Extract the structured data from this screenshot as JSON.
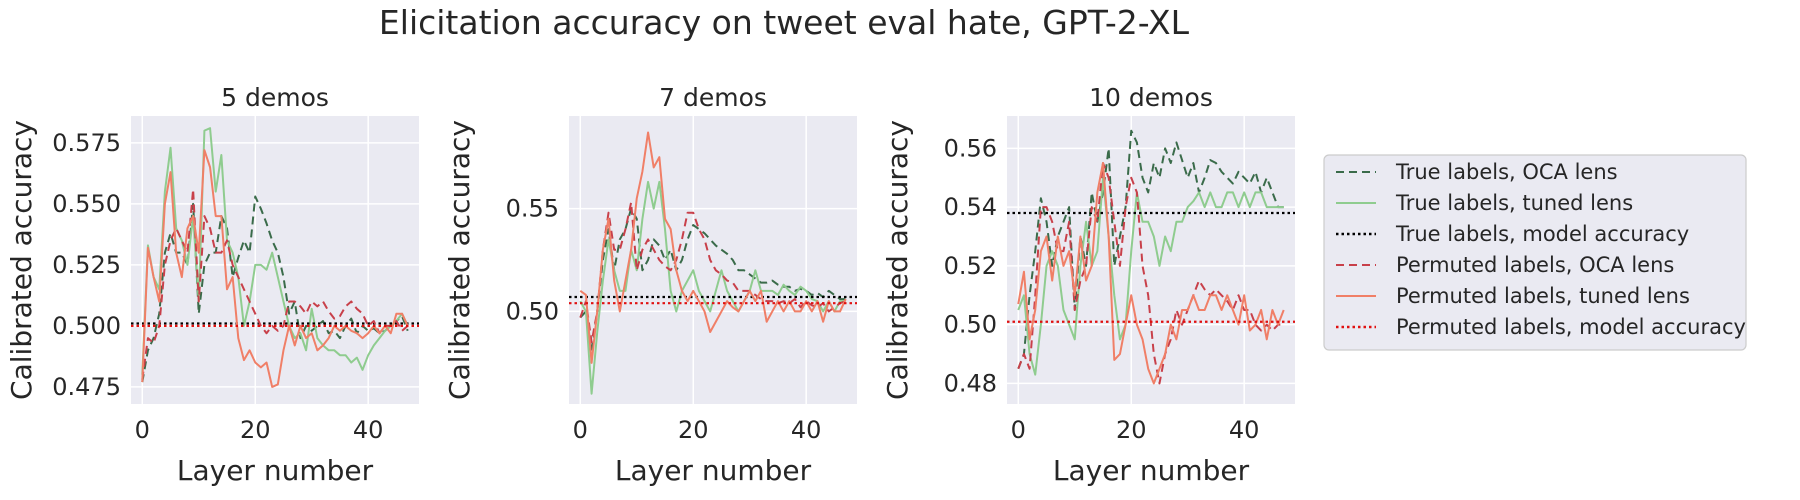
{
  "figure": {
    "title": "Elicitation accuracy on tweet eval hate, GPT-2-XL"
  },
  "legend": {
    "placement": "right, outside panels",
    "entries": [
      {
        "label": "True labels, OCA lens",
        "color": "#3a6b4a",
        "style": "dashed"
      },
      {
        "label": "True labels, tuned lens",
        "color": "#8fcc8f",
        "style": "solid"
      },
      {
        "label": "True labels, model accuracy",
        "color": "#000000",
        "style": "dotted"
      },
      {
        "label": "Permuted labels, OCA lens",
        "color": "#c8404a",
        "style": "dashed"
      },
      {
        "label": "Permuted labels, tuned lens",
        "color": "#f07f67",
        "style": "solid"
      },
      {
        "label": "Permuted labels, model accuracy",
        "color": "#e01010",
        "style": "dotted"
      }
    ]
  },
  "chart_data": [
    {
      "type": "line",
      "title": "5 demos",
      "xlabel": "Layer number",
      "ylabel": "Calibrated accuracy",
      "xlim": [
        -2,
        49
      ],
      "ylim": [
        0.468,
        0.586
      ],
      "xticks": [
        0,
        20,
        40
      ],
      "yticks": [
        0.475,
        0.5,
        0.525,
        0.55,
        0.575
      ],
      "ytick_labels": [
        "0.475",
        "0.500",
        "0.525",
        "0.550",
        "0.575"
      ],
      "grid": true,
      "series": [
        {
          "name": "True labels, OCA lens",
          "style": "dashed",
          "values": [
            0.477,
            0.49,
            0.495,
            0.505,
            0.53,
            0.538,
            0.53,
            0.53,
            0.525,
            0.55,
            0.505,
            0.525,
            0.53,
            0.53,
            0.545,
            0.54,
            0.52,
            0.528,
            0.535,
            0.53,
            0.553,
            0.548,
            0.542,
            0.535,
            0.53,
            0.52,
            0.505,
            0.51,
            0.495,
            0.5,
            0.498,
            0.5,
            0.502,
            0.497,
            0.498,
            0.495,
            0.5,
            0.503,
            0.497,
            0.5,
            0.498,
            0.499,
            0.497,
            0.498,
            0.5,
            0.502,
            0.504,
            0.498
          ]
        },
        {
          "name": "True labels, tuned lens",
          "style": "solid",
          "values": [
            0.48,
            0.533,
            0.52,
            0.515,
            0.555,
            0.573,
            0.54,
            0.535,
            0.525,
            0.545,
            0.51,
            0.58,
            0.581,
            0.555,
            0.57,
            0.535,
            0.53,
            0.52,
            0.5,
            0.51,
            0.525,
            0.525,
            0.523,
            0.53,
            0.52,
            0.51,
            0.5,
            0.495,
            0.497,
            0.49,
            0.507,
            0.495,
            0.492,
            0.49,
            0.49,
            0.488,
            0.488,
            0.485,
            0.487,
            0.482,
            0.488,
            0.492,
            0.495,
            0.498,
            0.5,
            0.502,
            0.505,
            0.5
          ]
        },
        {
          "name": "True labels, model accuracy",
          "style": "dotted",
          "constant": 0.501
        },
        {
          "name": "Permuted labels, OCA lens",
          "style": "dashed",
          "values": [
            0.478,
            0.495,
            0.493,
            0.5,
            0.525,
            0.535,
            0.54,
            0.535,
            0.53,
            0.556,
            0.51,
            0.545,
            0.54,
            0.53,
            0.53,
            0.535,
            0.525,
            0.52,
            0.515,
            0.51,
            0.505,
            0.5,
            0.497,
            0.5,
            0.498,
            0.5,
            0.51,
            0.51,
            0.508,
            0.505,
            0.51,
            0.508,
            0.51,
            0.506,
            0.503,
            0.504,
            0.508,
            0.51,
            0.507,
            0.505,
            0.5,
            0.502,
            0.497,
            0.5,
            0.5,
            0.502,
            0.498,
            0.5
          ]
        },
        {
          "name": "Permuted labels, tuned lens",
          "style": "solid",
          "values": [
            0.477,
            0.532,
            0.52,
            0.51,
            0.55,
            0.563,
            0.53,
            0.52,
            0.54,
            0.545,
            0.53,
            0.572,
            0.565,
            0.545,
            0.545,
            0.515,
            0.52,
            0.495,
            0.486,
            0.49,
            0.485,
            0.483,
            0.485,
            0.475,
            0.476,
            0.49,
            0.5,
            0.492,
            0.5,
            0.495,
            0.497,
            0.49,
            0.492,
            0.495,
            0.5,
            0.498,
            0.5,
            0.498,
            0.497,
            0.495,
            0.497,
            0.5,
            0.497,
            0.5,
            0.497,
            0.505,
            0.505,
            0.5
          ]
        },
        {
          "name": "Permuted labels, model accuracy",
          "style": "dotted",
          "constant": 0.5
        }
      ]
    },
    {
      "type": "line",
      "title": "7 demos",
      "xlabel": "Layer number",
      "ylabel": "Calibrated accuracy",
      "xlim": [
        -2,
        49
      ],
      "ylim": [
        0.455,
        0.595
      ],
      "xticks": [
        0,
        20,
        40
      ],
      "yticks": [
        0.5,
        0.55
      ],
      "ytick_labels": [
        "0.50",
        "0.55"
      ],
      "grid": true,
      "series": [
        {
          "name": "True labels, OCA lens",
          "style": "dashed",
          "values": [
            0.497,
            0.5,
            0.48,
            0.5,
            0.525,
            0.54,
            0.52,
            0.535,
            0.54,
            0.55,
            0.545,
            0.52,
            0.525,
            0.535,
            0.532,
            0.525,
            0.53,
            0.52,
            0.525,
            0.535,
            0.542,
            0.54,
            0.538,
            0.535,
            0.532,
            0.53,
            0.528,
            0.525,
            0.52,
            0.52,
            0.518,
            0.516,
            0.514,
            0.514,
            0.515,
            0.513,
            0.512,
            0.512,
            0.51,
            0.511,
            0.51,
            0.508,
            0.509,
            0.507,
            0.51,
            0.508,
            0.506,
            0.506
          ]
        },
        {
          "name": "True labels, tuned lens",
          "style": "solid",
          "values": [
            0.505,
            0.5,
            0.46,
            0.49,
            0.515,
            0.535,
            0.52,
            0.51,
            0.51,
            0.53,
            0.52,
            0.545,
            0.563,
            0.55,
            0.563,
            0.54,
            0.51,
            0.5,
            0.51,
            0.515,
            0.52,
            0.51,
            0.505,
            0.5,
            0.51,
            0.52,
            0.51,
            0.505,
            0.5,
            0.505,
            0.51,
            0.52,
            0.51,
            0.51,
            0.51,
            0.508,
            0.513,
            0.51,
            0.508,
            0.512,
            0.51,
            0.506,
            0.505,
            0.5,
            0.505,
            0.5,
            0.505,
            0.505
          ]
        },
        {
          "name": "True labels, model accuracy",
          "style": "dotted",
          "constant": 0.507
        },
        {
          "name": "Permuted labels, OCA lens",
          "style": "dashed",
          "values": [
            0.497,
            0.505,
            0.485,
            0.5,
            0.53,
            0.548,
            0.53,
            0.53,
            0.54,
            0.553,
            0.52,
            0.53,
            0.535,
            0.53,
            0.525,
            0.522,
            0.52,
            0.525,
            0.535,
            0.548,
            0.548,
            0.54,
            0.535,
            0.525,
            0.52,
            0.518,
            0.515,
            0.514,
            0.51,
            0.51,
            0.51,
            0.508,
            0.506,
            0.505,
            0.505,
            0.504,
            0.505,
            0.504,
            0.506,
            0.502,
            0.505,
            0.503,
            0.502,
            0.504,
            0.5,
            0.502,
            0.504,
            0.505
          ]
        },
        {
          "name": "Permuted labels, tuned lens",
          "style": "solid",
          "values": [
            0.51,
            0.508,
            0.475,
            0.5,
            0.53,
            0.545,
            0.515,
            0.5,
            0.515,
            0.53,
            0.555,
            0.568,
            0.587,
            0.57,
            0.575,
            0.545,
            0.54,
            0.52,
            0.51,
            0.505,
            0.51,
            0.505,
            0.5,
            0.49,
            0.495,
            0.5,
            0.505,
            0.502,
            0.5,
            0.505,
            0.51,
            0.505,
            0.51,
            0.495,
            0.5,
            0.505,
            0.5,
            0.505,
            0.5,
            0.5,
            0.505,
            0.5,
            0.505,
            0.495,
            0.505,
            0.5,
            0.5,
            0.506
          ]
        },
        {
          "name": "Permuted labels, model accuracy",
          "style": "dotted",
          "constant": 0.504
        }
      ]
    },
    {
      "type": "line",
      "title": "10 demos",
      "xlabel": "Layer number",
      "ylabel": "Calibrated accuracy",
      "xlim": [
        -2,
        49
      ],
      "ylim": [
        0.473,
        0.571
      ],
      "xticks": [
        0,
        20,
        40
      ],
      "yticks": [
        0.48,
        0.5,
        0.52,
        0.54,
        0.56
      ],
      "ytick_labels": [
        "0.48",
        "0.50",
        "0.52",
        "0.54",
        "0.56"
      ],
      "grid": true,
      "series": [
        {
          "name": "True labels, OCA lens",
          "style": "dashed",
          "values": [
            0.485,
            0.49,
            0.51,
            0.525,
            0.543,
            0.535,
            0.52,
            0.53,
            0.535,
            0.54,
            0.505,
            0.53,
            0.52,
            0.545,
            0.535,
            0.545,
            0.56,
            0.52,
            0.53,
            0.54,
            0.566,
            0.562,
            0.55,
            0.545,
            0.555,
            0.55,
            0.56,
            0.555,
            0.562,
            0.556,
            0.55,
            0.555,
            0.545,
            0.55,
            0.556,
            0.555,
            0.552,
            0.55,
            0.548,
            0.552,
            0.55,
            0.548,
            0.552,
            0.545,
            0.55,
            0.545,
            0.54,
            0.54
          ]
        },
        {
          "name": "True labels, tuned lens",
          "style": "solid",
          "values": [
            0.505,
            0.51,
            0.49,
            0.483,
            0.5,
            0.52,
            0.525,
            0.52,
            0.505,
            0.5,
            0.495,
            0.52,
            0.535,
            0.52,
            0.525,
            0.55,
            0.53,
            0.51,
            0.495,
            0.5,
            0.525,
            0.545,
            0.535,
            0.535,
            0.53,
            0.52,
            0.53,
            0.525,
            0.535,
            0.535,
            0.54,
            0.542,
            0.545,
            0.54,
            0.545,
            0.54,
            0.54,
            0.545,
            0.545,
            0.54,
            0.545,
            0.54,
            0.545,
            0.545,
            0.54,
            0.54,
            0.54,
            0.54
          ]
        },
        {
          "name": "True labels, model accuracy",
          "style": "dotted",
          "constant": 0.538
        },
        {
          "name": "Permuted labels, OCA lens",
          "style": "dashed",
          "values": [
            0.485,
            0.49,
            0.485,
            0.51,
            0.54,
            0.54,
            0.535,
            0.525,
            0.525,
            0.535,
            0.505,
            0.515,
            0.52,
            0.54,
            0.535,
            0.555,
            0.55,
            0.535,
            0.52,
            0.54,
            0.55,
            0.545,
            0.52,
            0.51,
            0.49,
            0.48,
            0.49,
            0.495,
            0.505,
            0.5,
            0.505,
            0.51,
            0.515,
            0.512,
            0.51,
            0.512,
            0.51,
            0.508,
            0.505,
            0.51,
            0.505,
            0.505,
            0.5,
            0.498,
            0.5,
            0.498,
            0.5,
            0.5
          ]
        },
        {
          "name": "Permuted labels, tuned lens",
          "style": "solid",
          "values": [
            0.507,
            0.518,
            0.495,
            0.505,
            0.525,
            0.53,
            0.515,
            0.53,
            0.52,
            0.525,
            0.51,
            0.53,
            0.515,
            0.52,
            0.545,
            0.555,
            0.53,
            0.488,
            0.49,
            0.5,
            0.51,
            0.5,
            0.495,
            0.485,
            0.48,
            0.485,
            0.49,
            0.5,
            0.495,
            0.505,
            0.505,
            0.51,
            0.505,
            0.505,
            0.51,
            0.51,
            0.505,
            0.51,
            0.505,
            0.5,
            0.51,
            0.498,
            0.5,
            0.505,
            0.495,
            0.505,
            0.5,
            0.505
          ]
        },
        {
          "name": "Permuted labels, model accuracy",
          "style": "dotted",
          "constant": 0.501
        }
      ]
    }
  ]
}
